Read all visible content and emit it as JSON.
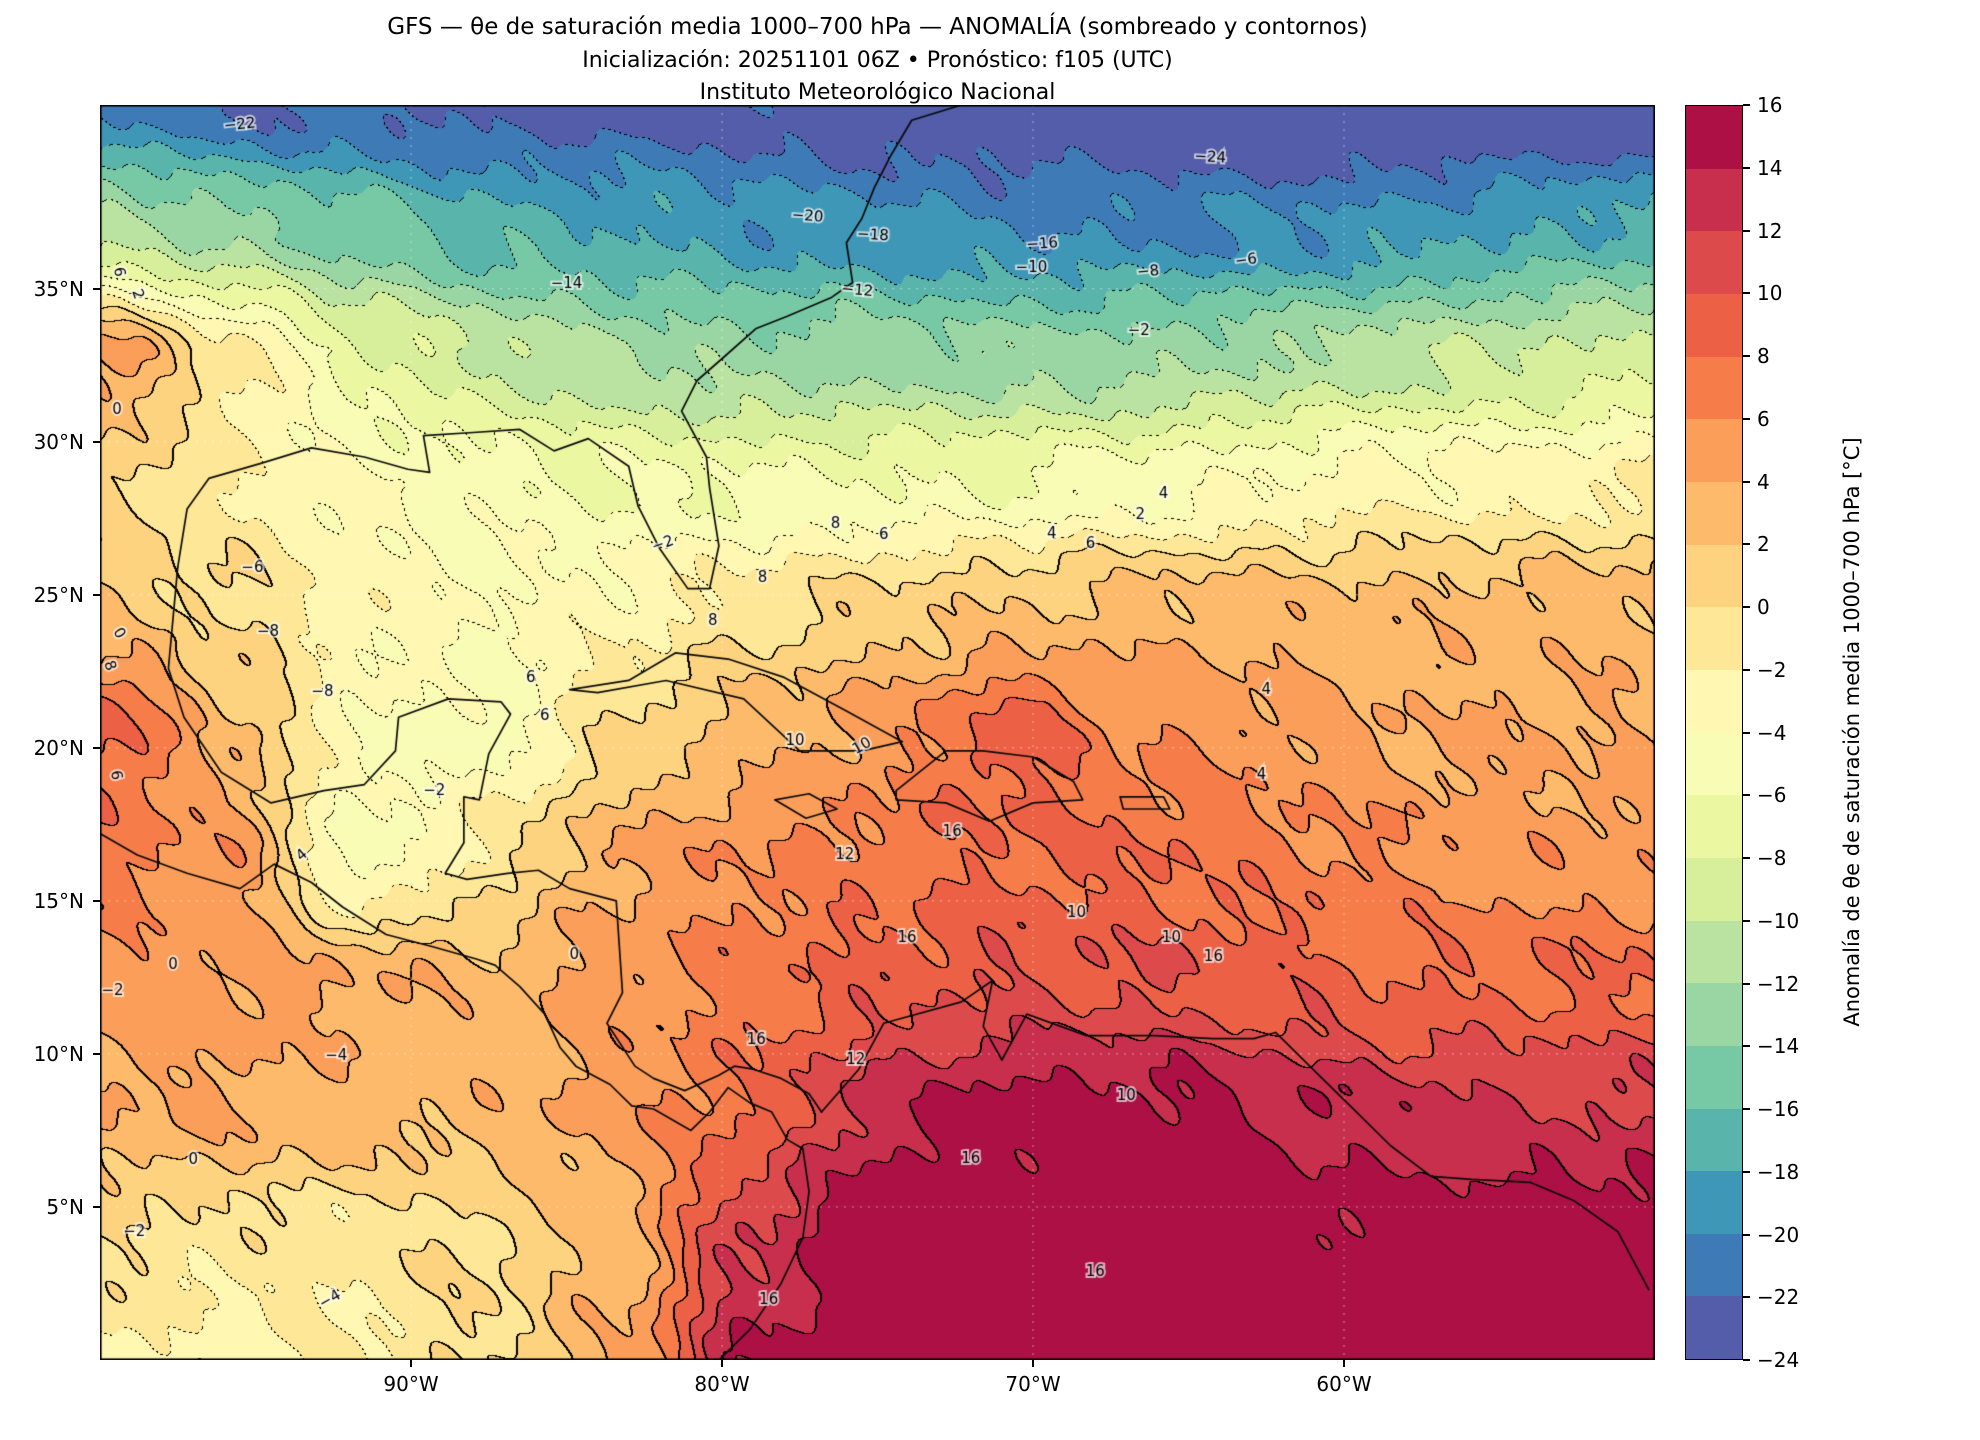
{
  "header": {
    "title": "GFS — θe de saturación media 1000–700 hPa — ANOMALÍA (sombreado y contornos)",
    "subtitle": "Inicialización: 20251101 06Z   •   Pronóstico: f105 (UTC)",
    "institution": "Instituto Meteorológico Nacional"
  },
  "chart_data": {
    "type": "filled_contour_map",
    "title": "GFS — θe de saturación media 1000–700 hPa — ANOMALÍA (sombreado y contornos)",
    "subtitle": "Inicialización: 20251101 06Z   •   Pronóstico: f105 (UTC)",
    "institution": "Instituto Meteorológico Nacional",
    "units": "°C",
    "extent": {
      "lon_min": -100,
      "lon_max": -50,
      "lat_min": 0,
      "lat_max": 41
    },
    "x_ticks": [
      {
        "lon": -90,
        "label": "90°W"
      },
      {
        "lon": -80,
        "label": "80°W"
      },
      {
        "lon": -70,
        "label": "70°W"
      },
      {
        "lon": -60,
        "label": "60°W"
      }
    ],
    "y_ticks": [
      {
        "lat": 35,
        "label": "35°N"
      },
      {
        "lat": 30,
        "label": "30°N"
      },
      {
        "lat": 25,
        "label": "25°N"
      },
      {
        "lat": 20,
        "label": "20°N"
      },
      {
        "lat": 15,
        "label": "15°N"
      },
      {
        "lat": 10,
        "label": "10°N"
      },
      {
        "lat": 5,
        "label": "5°N"
      }
    ],
    "colorbar": {
      "label": "Anomalía de θe de saturación media 1000–700 hPa [°C]",
      "levels": [
        -24,
        -22,
        -20,
        -18,
        -16,
        -14,
        -12,
        -10,
        -8,
        -6,
        -4,
        -2,
        0,
        2,
        4,
        6,
        8,
        10,
        12,
        14,
        16
      ],
      "tick_labels": [
        "−24",
        "−22",
        "−20",
        "−18",
        "−16",
        "−14",
        "−12",
        "−10",
        "−8",
        "−6",
        "−4",
        "−2",
        "0",
        "2",
        "4",
        "6",
        "8",
        "10",
        "12",
        "14",
        "16"
      ],
      "colors": [
        "#535da9",
        "#3d7ab6",
        "#3f97b7",
        "#59b4ab",
        "#77c9a5",
        "#9ad6a4",
        "#bae3a1",
        "#d7ef9b",
        "#ecf7a2",
        "#f9fcb5",
        "#fff7b2",
        "#fee898",
        "#fed380",
        "#fdba6b",
        "#fb9e59",
        "#f67d4a",
        "#ec6146",
        "#dd4a4c",
        "#c72f4c",
        "#ac1045"
      ]
    },
    "grid": {
      "comment": "Anomaly values [°C] on a regular lon/lat grid; rows from lat_max (north) to lat_min (south), cols from lon_min (west) to lon_max (east).",
      "nx": 13,
      "ny": 11,
      "values": [
        [
          -20,
          -22,
          -22,
          -23,
          -23,
          -23,
          -24,
          -24,
          -25,
          -25,
          -25,
          -25,
          -25
        ],
        [
          -11,
          -13,
          -15,
          -17,
          -18,
          -19,
          -19,
          -20,
          -20,
          -20,
          -19,
          -18,
          -17
        ],
        [
          5,
          -1,
          -7,
          -10,
          -12,
          -13,
          -13,
          -13,
          -13,
          -12,
          -11,
          -10,
          -9
        ],
        [
          1,
          -2,
          -4,
          -5,
          -6,
          -6,
          -6,
          -6,
          -5,
          -4,
          -3,
          -3,
          -2
        ],
        [
          2,
          0,
          -3,
          -4,
          -3,
          -1,
          1,
          2,
          3,
          3,
          3,
          3,
          3
        ],
        [
          9,
          3,
          -4,
          -5,
          0,
          3,
          5,
          9,
          6,
          5,
          4,
          4,
          4
        ],
        [
          7,
          5,
          -5,
          -1,
          4,
          6,
          7,
          8,
          8,
          7,
          6,
          5,
          5
        ],
        [
          5,
          5,
          4,
          3,
          5,
          7,
          9,
          10,
          10,
          9,
          8,
          8,
          8
        ],
        [
          4,
          4,
          3,
          3,
          5,
          8,
          13,
          15,
          15,
          14,
          13,
          12,
          12
        ],
        [
          0,
          -1,
          -1,
          0,
          3,
          12,
          16,
          16,
          16,
          15,
          15,
          16,
          16
        ],
        [
          -2,
          -3,
          -2,
          0,
          4,
          14,
          16,
          17,
          17,
          16,
          16,
          17,
          17
        ]
      ]
    },
    "contour_labels": [
      {
        "t": "−22",
        "fx": 0.09,
        "fy": 0.016,
        "r": -6
      },
      {
        "t": "−24",
        "fx": 0.714,
        "fy": 0.042,
        "r": 3
      },
      {
        "t": "−20",
        "fx": 0.455,
        "fy": 0.089,
        "r": 4
      },
      {
        "t": "−18",
        "fx": 0.497,
        "fy": 0.104,
        "r": 3
      },
      {
        "t": "−16",
        "fx": 0.606,
        "fy": 0.111,
        "r": -4
      },
      {
        "t": "−10",
        "fx": 0.599,
        "fy": 0.13,
        "r": 0
      },
      {
        "t": "−8",
        "fx": 0.674,
        "fy": 0.133,
        "r": -5
      },
      {
        "t": "−6",
        "fx": 0.737,
        "fy": 0.124,
        "r": -8
      },
      {
        "t": "−14",
        "fx": 0.3,
        "fy": 0.143,
        "r": 0
      },
      {
        "t": "−12",
        "fx": 0.487,
        "fy": 0.148,
        "r": 5
      },
      {
        "t": "−2",
        "fx": 0.668,
        "fy": 0.18,
        "r": 0
      },
      {
        "t": "6",
        "fx": 0.012,
        "fy": 0.133,
        "r": 80
      },
      {
        "t": "2",
        "fx": 0.024,
        "fy": 0.151,
        "r": 70
      },
      {
        "t": "0",
        "fx": 0.011,
        "fy": 0.243,
        "r": 0
      },
      {
        "t": "−6",
        "fx": 0.098,
        "fy": 0.369,
        "r": 0
      },
      {
        "t": "−2",
        "fx": 0.362,
        "fy": 0.35,
        "r": -20
      },
      {
        "t": "8",
        "fx": 0.473,
        "fy": 0.334,
        "r": 0
      },
      {
        "t": "6",
        "fx": 0.504,
        "fy": 0.343,
        "r": 0
      },
      {
        "t": "4",
        "fx": 0.684,
        "fy": 0.31,
        "r": 0
      },
      {
        "t": "2",
        "fx": 0.669,
        "fy": 0.327,
        "r": 0
      },
      {
        "t": "4",
        "fx": 0.612,
        "fy": 0.342,
        "r": 0
      },
      {
        "t": "6",
        "fx": 0.637,
        "fy": 0.35,
        "r": 0
      },
      {
        "t": "8",
        "fx": 0.426,
        "fy": 0.377,
        "r": 0
      },
      {
        "t": "8",
        "fx": 0.394,
        "fy": 0.411,
        "r": 0
      },
      {
        "t": "0",
        "fx": 0.012,
        "fy": 0.421,
        "r": 60
      },
      {
        "t": "8",
        "fx": 0.006,
        "fy": 0.447,
        "r": 70
      },
      {
        "t": "−8",
        "fx": 0.108,
        "fy": 0.42,
        "r": 0
      },
      {
        "t": "6",
        "fx": 0.277,
        "fy": 0.457,
        "r": 0
      },
      {
        "t": "6",
        "fx": 0.286,
        "fy": 0.487,
        "r": 0
      },
      {
        "t": "−8",
        "fx": 0.143,
        "fy": 0.468,
        "r": 0
      },
      {
        "t": "10",
        "fx": 0.447,
        "fy": 0.507,
        "r": 0
      },
      {
        "t": "10",
        "fx": 0.49,
        "fy": 0.511,
        "r": -30
      },
      {
        "t": "4",
        "fx": 0.75,
        "fy": 0.466,
        "r": 0
      },
      {
        "t": "6",
        "fx": 0.01,
        "fy": 0.534,
        "r": 80
      },
      {
        "t": "−2",
        "fx": 0.215,
        "fy": 0.547,
        "r": 0
      },
      {
        "t": "4",
        "fx": 0.13,
        "fy": 0.598,
        "r": -40
      },
      {
        "t": "16",
        "fx": 0.548,
        "fy": 0.579,
        "r": 0
      },
      {
        "t": "12",
        "fx": 0.479,
        "fy": 0.598,
        "r": 0
      },
      {
        "t": "10",
        "fx": 0.628,
        "fy": 0.644,
        "r": 0
      },
      {
        "t": "16",
        "fx": 0.519,
        "fy": 0.664,
        "r": 0
      },
      {
        "t": "10",
        "fx": 0.689,
        "fy": 0.664,
        "r": 0
      },
      {
        "t": "16",
        "fx": 0.716,
        "fy": 0.679,
        "r": 0
      },
      {
        "t": "0",
        "fx": 0.305,
        "fy": 0.677,
        "r": 0
      },
      {
        "t": "0",
        "fx": 0.047,
        "fy": 0.685,
        "r": 0
      },
      {
        "t": "−2",
        "fx": 0.008,
        "fy": 0.706,
        "r": 0
      },
      {
        "t": "−4",
        "fx": 0.152,
        "fy": 0.758,
        "r": 0
      },
      {
        "t": "16",
        "fx": 0.422,
        "fy": 0.745,
        "r": 0
      },
      {
        "t": "4",
        "fx": 0.747,
        "fy": 0.534,
        "r": 0
      },
      {
        "t": "12",
        "fx": 0.486,
        "fy": 0.761,
        "r": 0
      },
      {
        "t": "16",
        "fx": 0.56,
        "fy": 0.84,
        "r": 0
      },
      {
        "t": "0",
        "fx": 0.06,
        "fy": 0.841,
        "r": 0
      },
      {
        "t": "−2",
        "fx": 0.022,
        "fy": 0.898,
        "r": 0
      },
      {
        "t": "−4",
        "fx": 0.148,
        "fy": 0.952,
        "r": -30
      },
      {
        "t": "16",
        "fx": 0.43,
        "fy": 0.952,
        "r": 0
      },
      {
        "t": "16",
        "fx": 0.64,
        "fy": 0.93,
        "r": 0
      },
      {
        "t": "10",
        "fx": 0.66,
        "fy": 0.79,
        "r": 0
      }
    ],
    "coastlines": [
      [
        [
          -97.5,
          25.9
        ],
        [
          -97.2,
          27.8
        ],
        [
          -96.5,
          28.8
        ],
        [
          -94.8,
          29.3
        ],
        [
          -93.2,
          29.8
        ],
        [
          -91.5,
          29.5
        ],
        [
          -90.1,
          29.1
        ],
        [
          -89.4,
          29.0
        ],
        [
          -89.6,
          30.2
        ],
        [
          -88.0,
          30.3
        ],
        [
          -86.5,
          30.4
        ],
        [
          -85.4,
          29.7
        ],
        [
          -84.3,
          30.1
        ],
        [
          -83.0,
          29.2
        ],
        [
          -82.7,
          27.9
        ],
        [
          -82.0,
          26.5
        ],
        [
          -81.1,
          25.2
        ],
        [
          -80.4,
          25.2
        ],
        [
          -80.1,
          26.6
        ],
        [
          -80.4,
          28.5
        ],
        [
          -80.5,
          29.5
        ],
        [
          -81.3,
          31.0
        ],
        [
          -80.8,
          32.0
        ],
        [
          -79.9,
          32.8
        ],
        [
          -78.9,
          33.7
        ],
        [
          -77.9,
          34.1
        ],
        [
          -76.5,
          34.7
        ],
        [
          -75.8,
          35.2
        ],
        [
          -76.0,
          36.5
        ],
        [
          -75.5,
          37.3
        ],
        [
          -75.1,
          38.3
        ],
        [
          -74.6,
          39.3
        ],
        [
          -73.9,
          40.5
        ],
        [
          -72.3,
          41.0
        ]
      ],
      [
        [
          -97.5,
          25.9
        ],
        [
          -97.8,
          22.6
        ],
        [
          -97.3,
          21.0
        ],
        [
          -96.1,
          19.2
        ],
        [
          -94.5,
          18.2
        ],
        [
          -92.8,
          18.6
        ],
        [
          -91.5,
          18.8
        ],
        [
          -90.5,
          19.9
        ],
        [
          -90.4,
          21.0
        ],
        [
          -88.8,
          21.6
        ],
        [
          -87.1,
          21.5
        ],
        [
          -86.8,
          21.1
        ],
        [
          -87.5,
          19.8
        ],
        [
          -87.8,
          18.3
        ],
        [
          -88.3,
          18.4
        ],
        [
          -88.3,
          16.9
        ],
        [
          -88.9,
          15.9
        ],
        [
          -88.2,
          15.7
        ],
        [
          -86.9,
          15.9
        ],
        [
          -85.9,
          16.0
        ],
        [
          -84.9,
          15.4
        ],
        [
          -83.4,
          15.0
        ],
        [
          -83.2,
          12.0
        ],
        [
          -83.7,
          11.0
        ],
        [
          -82.8,
          9.6
        ],
        [
          -82.2,
          9.2
        ],
        [
          -81.2,
          8.8
        ],
        [
          -80.1,
          9.3
        ],
        [
          -79.6,
          9.6
        ],
        [
          -79.0,
          9.5
        ],
        [
          -78.1,
          9.2
        ],
        [
          -77.2,
          8.7
        ],
        [
          -76.8,
          8.1
        ]
      ],
      [
        [
          -100.0,
          17.2
        ],
        [
          -98.8,
          16.5
        ],
        [
          -97.2,
          15.9
        ],
        [
          -95.5,
          15.4
        ],
        [
          -94.4,
          16.2
        ],
        [
          -93.2,
          15.6
        ],
        [
          -92.2,
          14.8
        ],
        [
          -90.8,
          13.9
        ],
        [
          -89.3,
          13.5
        ],
        [
          -87.9,
          13.1
        ],
        [
          -87.3,
          12.9
        ],
        [
          -86.5,
          12.2
        ],
        [
          -85.7,
          11.3
        ],
        [
          -85.2,
          10.2
        ],
        [
          -84.7,
          9.6
        ],
        [
          -83.6,
          9.0
        ],
        [
          -82.9,
          8.3
        ],
        [
          -82.2,
          8.2
        ],
        [
          -81.0,
          7.5
        ],
        [
          -80.4,
          8.1
        ],
        [
          -79.8,
          8.9
        ],
        [
          -79.1,
          8.4
        ],
        [
          -78.4,
          8.1
        ],
        [
          -77.9,
          7.2
        ],
        [
          -77.4,
          6.9
        ],
        [
          -77.2,
          5.5
        ],
        [
          -77.4,
          4.0
        ],
        [
          -78.1,
          2.5
        ],
        [
          -79.1,
          1.0
        ],
        [
          -80.1,
          0.0
        ]
      ],
      [
        [
          -76.8,
          8.1
        ],
        [
          -75.6,
          9.5
        ],
        [
          -74.8,
          11.0
        ],
        [
          -72.3,
          11.7
        ],
        [
          -71.3,
          12.4
        ],
        [
          -71.6,
          10.9
        ],
        [
          -71.0,
          9.8
        ],
        [
          -70.2,
          11.3
        ],
        [
          -68.3,
          10.6
        ],
        [
          -66.1,
          10.6
        ],
        [
          -64.2,
          10.5
        ],
        [
          -62.9,
          10.5
        ],
        [
          -62.2,
          10.7
        ],
        [
          -60.8,
          9.3
        ],
        [
          -59.8,
          8.3
        ],
        [
          -58.5,
          7.0
        ],
        [
          -57.2,
          6.0
        ],
        [
          -55.9,
          5.9
        ],
        [
          -54.0,
          5.8
        ],
        [
          -52.6,
          5.2
        ],
        [
          -51.2,
          4.2
        ],
        [
          -50.2,
          2.3
        ]
      ],
      [
        [
          -84.9,
          21.9
        ],
        [
          -83.0,
          22.2
        ],
        [
          -81.5,
          23.1
        ],
        [
          -79.8,
          22.9
        ],
        [
          -78.0,
          22.3
        ],
        [
          -76.0,
          21.2
        ],
        [
          -74.2,
          20.2
        ],
        [
          -75.5,
          19.9
        ],
        [
          -77.5,
          19.9
        ],
        [
          -79.3,
          21.6
        ],
        [
          -81.8,
          22.2
        ],
        [
          -84.0,
          21.8
        ],
        [
          -84.9,
          21.9
        ]
      ],
      [
        [
          -74.4,
          18.6
        ],
        [
          -72.8,
          19.9
        ],
        [
          -71.6,
          19.9
        ],
        [
          -70.0,
          19.7
        ],
        [
          -68.7,
          18.9
        ],
        [
          -68.4,
          18.3
        ],
        [
          -70.0,
          18.2
        ],
        [
          -71.4,
          17.6
        ],
        [
          -72.8,
          18.2
        ],
        [
          -74.4,
          18.3
        ],
        [
          -74.4,
          18.6
        ]
      ],
      [
        [
          -78.3,
          18.3
        ],
        [
          -77.2,
          18.5
        ],
        [
          -76.3,
          18.0
        ],
        [
          -77.3,
          17.7
        ],
        [
          -78.3,
          18.3
        ]
      ],
      [
        [
          -67.2,
          18.4
        ],
        [
          -65.8,
          18.4
        ],
        [
          -65.6,
          18.0
        ],
        [
          -67.1,
          18.0
        ],
        [
          -67.2,
          18.4
        ]
      ]
    ]
  }
}
